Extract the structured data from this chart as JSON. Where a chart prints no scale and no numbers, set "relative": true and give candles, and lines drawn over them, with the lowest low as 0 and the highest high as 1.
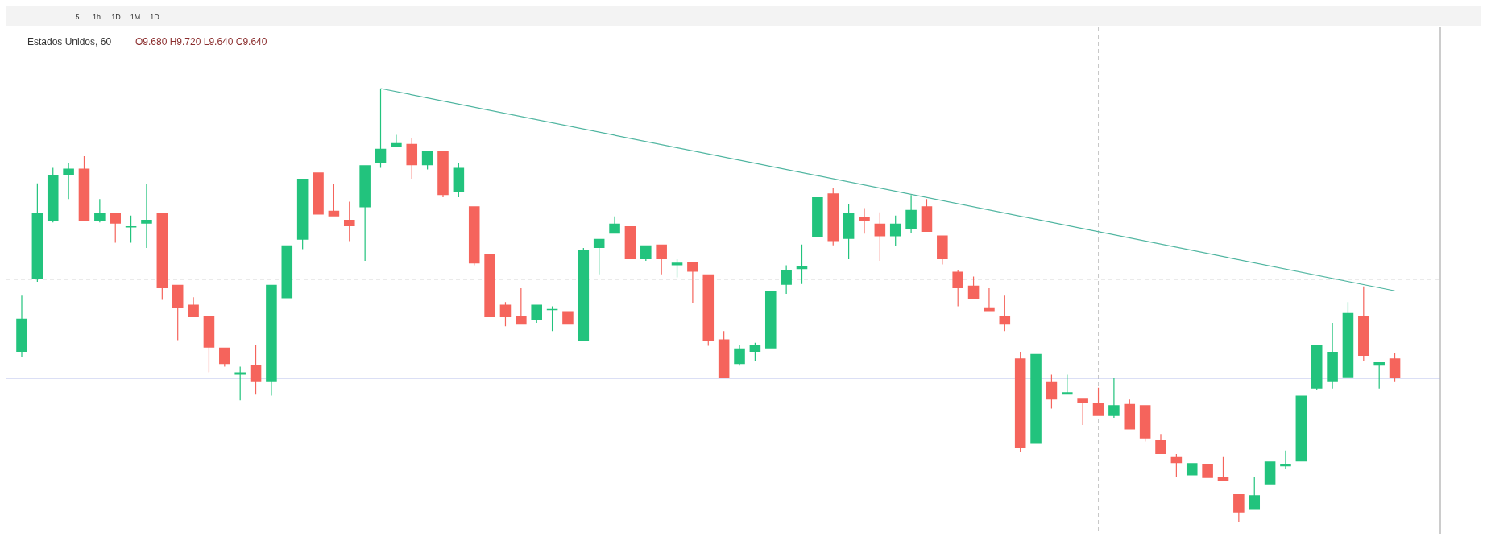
{
  "chart_data": {
    "type": "candlestick",
    "title": "Estados Unidos, 60",
    "relative": true,
    "annotations": [
      "5",
      "1h",
      "1D",
      "1M",
      "1D",
      "O9.680 H9.720 L9.640 C9.640"
    ],
    "categories": [
      null,
      null,
      null,
      null,
      null,
      null,
      null,
      null,
      null,
      null,
      null,
      null,
      null,
      null,
      null,
      null,
      null,
      null,
      null,
      null,
      null,
      null,
      null,
      null,
      null,
      null,
      null,
      null,
      null,
      null,
      null,
      null,
      null,
      null,
      null,
      null,
      null,
      null,
      null,
      null,
      null,
      null,
      null,
      null,
      null,
      null,
      null,
      null,
      null,
      null,
      null,
      null,
      null,
      null,
      null,
      null,
      null,
      null,
      null,
      null,
      null,
      null,
      null,
      null,
      null,
      null,
      null,
      null,
      null,
      null,
      null,
      null,
      null,
      null,
      null,
      null,
      null,
      null,
      null,
      null,
      null,
      null,
      null,
      null,
      null,
      null,
      null,
      null,
      null
    ],
    "ohlc": [
      [
        0.392,
        0.522,
        0.379,
        0.469
      ],
      [
        0.56,
        0.781,
        0.554,
        0.712
      ],
      [
        0.695,
        0.817,
        0.691,
        0.8
      ],
      [
        0.8,
        0.827,
        0.745,
        0.815
      ],
      [
        0.815,
        0.844,
        0.695,
        0.695
      ],
      [
        0.695,
        0.745,
        0.691,
        0.712
      ],
      [
        0.712,
        0.712,
        0.644,
        0.688
      ],
      [
        0.682,
        0.707,
        0.644,
        0.682
      ],
      [
        0.688,
        0.779,
        0.632,
        0.697
      ],
      [
        0.712,
        0.712,
        0.512,
        0.539
      ],
      [
        0.547,
        0.547,
        0.419,
        0.493
      ],
      [
        0.501,
        0.518,
        0.472,
        0.472
      ],
      [
        0.476,
        0.476,
        0.345,
        0.402
      ],
      [
        0.402,
        0.402,
        0.358,
        0.364
      ],
      [
        0.339,
        0.358,
        0.28,
        0.345
      ],
      [
        0.362,
        0.408,
        0.293,
        0.324
      ],
      [
        0.324,
        0.547,
        0.291,
        0.547
      ],
      [
        0.516,
        0.638,
        0.516,
        0.638
      ],
      [
        0.651,
        0.792,
        0.629,
        0.792
      ],
      [
        0.806,
        0.806,
        0.709,
        0.709
      ],
      [
        0.718,
        0.779,
        0.705,
        0.705
      ],
      [
        0.697,
        0.739,
        0.648,
        0.682
      ],
      [
        0.726,
        0.823,
        0.602,
        0.823
      ],
      [
        0.829,
        1,
        0.817,
        0.861
      ],
      [
        0.865,
        0.893,
        0.865,
        0.874
      ],
      [
        0.872,
        0.886,
        0.792,
        0.823
      ],
      [
        0.823,
        0.855,
        0.813,
        0.855
      ],
      [
        0.855,
        0.855,
        0.749,
        0.754
      ],
      [
        0.76,
        0.829,
        0.749,
        0.817
      ],
      [
        0.728,
        0.728,
        0.592,
        0.596
      ],
      [
        0.617,
        0.617,
        0.472,
        0.472
      ],
      [
        0.501,
        0.507,
        0.451,
        0.472
      ],
      [
        0.476,
        0.539,
        0.455,
        0.455
      ],
      [
        0.465,
        0.501,
        0.459,
        0.501
      ],
      [
        0.491,
        0.497,
        0.44,
        0.491
      ],
      [
        0.486,
        0.486,
        0.455,
        0.455
      ],
      [
        0.417,
        0.632,
        0.417,
        0.627
      ],
      [
        0.632,
        0.653,
        0.571,
        0.653
      ],
      [
        0.665,
        0.705,
        0.665,
        0.688
      ],
      [
        0.682,
        0.682,
        0.606,
        0.606
      ],
      [
        0.606,
        0.638,
        0.602,
        0.638
      ],
      [
        0.64,
        0.64,
        0.571,
        0.606
      ],
      [
        0.592,
        0.606,
        0.564,
        0.598
      ],
      [
        0.6,
        0.6,
        0.505,
        0.577
      ],
      [
        0.571,
        0.571,
        0.406,
        0.417
      ],
      [
        0.421,
        0.44,
        0.331,
        0.331
      ],
      [
        0.364,
        0.408,
        0.36,
        0.4
      ],
      [
        0.392,
        0.413,
        0.371,
        0.408
      ],
      [
        0.4,
        0.533,
        0.4,
        0.533
      ],
      [
        0.547,
        0.592,
        0.526,
        0.581
      ],
      [
        0.583,
        0.64,
        0.549,
        0.589
      ],
      [
        0.657,
        0.749,
        0.657,
        0.749
      ],
      [
        0.758,
        0.771,
        0.638,
        0.648
      ],
      [
        0.653,
        0.733,
        0.606,
        0.712
      ],
      [
        0.703,
        0.724,
        0.665,
        0.695
      ],
      [
        0.688,
        0.714,
        0.602,
        0.659
      ],
      [
        0.659,
        0.707,
        0.636,
        0.688
      ],
      [
        0.676,
        0.754,
        0.667,
        0.72
      ],
      [
        0.728,
        0.745,
        0.669,
        0.669
      ],
      [
        0.661,
        0.661,
        0.594,
        0.606
      ],
      [
        0.577,
        0.581,
        0.497,
        0.539
      ],
      [
        0.545,
        0.566,
        0.514,
        0.514
      ],
      [
        0.495,
        0.539,
        0.486,
        0.486
      ],
      [
        0.476,
        0.522,
        0.44,
        0.455
      ],
      [
        0.377,
        0.392,
        0.16,
        0.171
      ],
      [
        0.181,
        0.387,
        0.181,
        0.387
      ],
      [
        0.324,
        0.339,
        0.261,
        0.282
      ],
      [
        0.293,
        0.339,
        0.293,
        0.299
      ],
      [
        0.284,
        0.284,
        0.223,
        0.274
      ],
      [
        0.274,
        0.309,
        0.244,
        0.244
      ],
      [
        0.244,
        0.331,
        0.24,
        0.269
      ],
      [
        0.272,
        0.282,
        0.213,
        0.213
      ],
      [
        0.269,
        0.269,
        0.185,
        0.192
      ],
      [
        0.189,
        0.202,
        0.156,
        0.156
      ],
      [
        0.149,
        0.156,
        0.103,
        0.135
      ],
      [
        0.107,
        0.135,
        0.107,
        0.135
      ],
      [
        0.133,
        0.133,
        0.101,
        0.101
      ],
      [
        0.103,
        0.149,
        0.095,
        0.095
      ],
      [
        0.063,
        0.063,
        0,
        0.021
      ],
      [
        0.029,
        0.103,
        0.029,
        0.061
      ],
      [
        0.086,
        0.139,
        0.086,
        0.139
      ],
      [
        0.128,
        0.164,
        0.122,
        0.133
      ],
      [
        0.139,
        0.291,
        0.139,
        0.291
      ],
      [
        0.307,
        0.408,
        0.303,
        0.408
      ],
      [
        0.324,
        0.459,
        0.307,
        0.392
      ],
      [
        0.333,
        0.507,
        0.333,
        0.482
      ],
      [
        0.476,
        0.543,
        0.371,
        0.383
      ],
      [
        0.36,
        0.368,
        0.307,
        0.368
      ],
      [
        0.377,
        0.389,
        0.324,
        0.331
      ]
    ],
    "colors": [
      "#22c37d",
      "#22c37d",
      "#22c37d",
      "#22c37d",
      "#f5645c",
      "#22c37d",
      "#f5645c",
      "#22c37d",
      "#22c37d",
      "#f5645c",
      "#f5645c",
      "#f5645c",
      "#f5645c",
      "#f5645c",
      "#22c37d",
      "#f5645c",
      "#22c37d",
      "#22c37d",
      "#22c37d",
      "#f5645c",
      "#f5645c",
      "#f5645c",
      "#22c37d",
      "#22c37d",
      "#22c37d",
      "#f5645c",
      "#22c37d",
      "#f5645c",
      "#22c37d",
      "#f5645c",
      "#f5645c",
      "#f5645c",
      "#f5645c",
      "#22c37d",
      "#22c37d",
      "#f5645c",
      "#22c37d",
      "#22c37d",
      "#22c37d",
      "#f5645c",
      "#22c37d",
      "#f5645c",
      "#22c37d",
      "#f5645c",
      "#f5645c",
      "#f5645c",
      "#22c37d",
      "#22c37d",
      "#22c37d",
      "#22c37d",
      "#22c37d",
      "#22c37d",
      "#f5645c",
      "#22c37d",
      "#f5645c",
      "#f5645c",
      "#22c37d",
      "#22c37d",
      "#f5645c",
      "#f5645c",
      "#f5645c",
      "#f5645c",
      "#f5645c",
      "#f5645c",
      "#f5645c",
      "#22c37d",
      "#f5645c",
      "#22c37d",
      "#f5645c",
      "#f5645c",
      "#22c37d",
      "#f5645c",
      "#f5645c",
      "#f5645c",
      "#f5645c",
      "#22c37d",
      "#f5645c",
      "#f5645c",
      "#f5645c",
      "#22c37d",
      "#22c37d",
      "#22c37d",
      "#22c37d",
      "#22c37d",
      "#22c37d",
      "#22c37d",
      "#f5645c",
      "#22c37d",
      "#f5645c"
    ],
    "series": [
      {
        "type": "line",
        "color": "#4fb5a0",
        "values": [
          null,
          null,
          null,
          null,
          null,
          null,
          null,
          null,
          null,
          null,
          null,
          null,
          null,
          null,
          null,
          null,
          null,
          null,
          null,
          null,
          null,
          null,
          null,
          1,
          null,
          null,
          null,
          null,
          null,
          null,
          null,
          null,
          null,
          null,
          null,
          null,
          null,
          null,
          null,
          null,
          null,
          null,
          null,
          null,
          null,
          null,
          null,
          null,
          null,
          null,
          null,
          null,
          null,
          null,
          null,
          null,
          null,
          null,
          null,
          null,
          null,
          null,
          null,
          null,
          null,
          null,
          null,
          null,
          null,
          null,
          null,
          null,
          null,
          null,
          null,
          null,
          null,
          null,
          null,
          null,
          null,
          null,
          null,
          null,
          null,
          null,
          null,
          null,
          0.533
        ]
      }
    ],
    "ref_lines": [
      {
        "axis": "y",
        "value": 0.56,
        "color": "#9e9e9e",
        "line_style": "dashed"
      },
      {
        "axis": "y",
        "value": 0.331,
        "color": "#aab4e8",
        "line_style": "solid"
      }
    ]
  }
}
